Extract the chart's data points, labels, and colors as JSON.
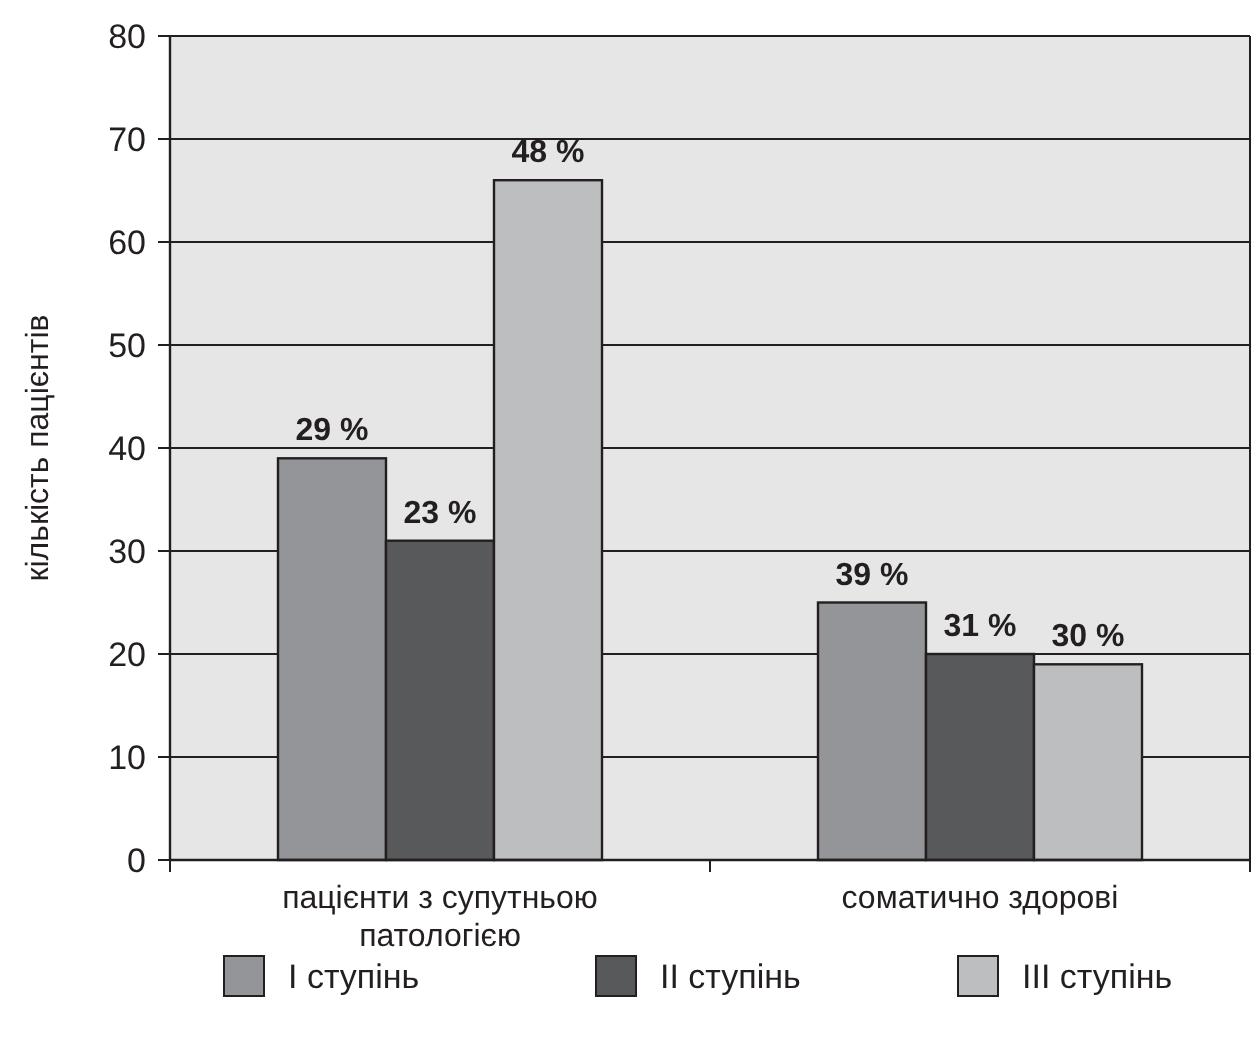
{
  "chart_data": {
    "type": "bar",
    "ylabel": "кількість пацієнтів",
    "categories": [
      "пацієнти з супутньою патологією",
      "соматично здорові"
    ],
    "series": [
      {
        "name": "I ступінь",
        "color": "#939598",
        "values": [
          39,
          25
        ]
      },
      {
        "name": "II ступінь",
        "color": "#58595b",
        "values": [
          31,
          20
        ]
      },
      {
        "name": "III ступінь",
        "color": "#bcbec0",
        "values": [
          66,
          19
        ]
      }
    ],
    "annotations": [
      "29 %",
      "23 %",
      "48 %",
      "39 %",
      "31 %",
      "30 %"
    ],
    "ylim": [
      0,
      80
    ],
    "yticks": [
      0,
      10,
      20,
      30,
      40,
      50,
      60,
      70,
      80
    ],
    "grid": "y",
    "legend": "bottom"
  }
}
